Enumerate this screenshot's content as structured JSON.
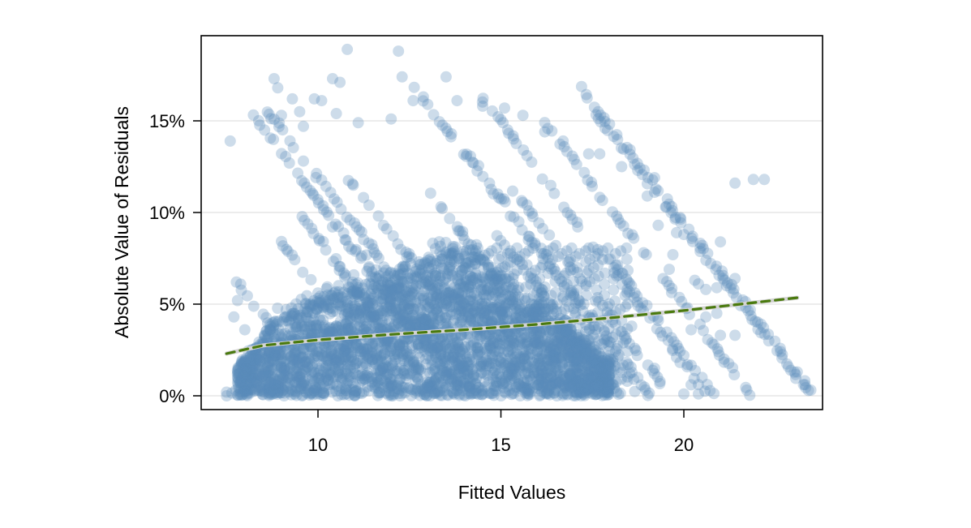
{
  "chart_data": {
    "type": "scatter",
    "title": "",
    "xlabel": "Fitted Values",
    "ylabel": "Absolute Value of Residuals",
    "xlim": [
      7.2,
      23.5
    ],
    "ylim": [
      -0.4,
      19.4
    ],
    "x_ticks": [
      10,
      15,
      20
    ],
    "x_tick_labels": [
      "10",
      "15",
      "20"
    ],
    "y_ticks": [
      0,
      5,
      10,
      15
    ],
    "y_tick_labels": [
      "0%",
      "5%",
      "10%",
      "15%"
    ],
    "y_unit": "percent",
    "grid": {
      "horizontal": true,
      "vertical": false,
      "color": "#e6e6e6"
    },
    "legend": null,
    "colors": {
      "points": "#5b8cba",
      "point_alpha": 0.3,
      "trend_line": "#4a7a0e",
      "trend_halo": "#d3d3d3",
      "frame": "#000000"
    },
    "series": [
      {
        "name": "Absolute residuals",
        "kind": "scatter",
        "description": "Dense cloud of points, concentrated at fitted values 8-18 and residuals 0-8%; hatched diagonal band structure; sparse outliers above 10% and beyond fitted 19.",
        "band_generator": {
          "falling_bands": {
            "x_start": [
              7.6,
              18.2
            ],
            "spacing": 0.45,
            "slope": -1.0,
            "y_max": 17.5
          },
          "rising_bands": {
            "x_start": [
              7.5,
              17.5
            ],
            "spacing": 0.5,
            "slope": 1.0,
            "y_max": 8.5
          }
        },
        "points": [
          [
            7.6,
            13.9
          ],
          [
            8.8,
            17.3
          ],
          [
            8.9,
            16.8
          ],
          [
            9.3,
            16.2
          ],
          [
            9.0,
            15.3
          ],
          [
            9.5,
            15.5
          ],
          [
            10.8,
            18.9
          ],
          [
            12.2,
            18.8
          ],
          [
            12.3,
            17.4
          ],
          [
            10.4,
            17.3
          ],
          [
            10.6,
            17.1
          ],
          [
            9.9,
            16.2
          ],
          [
            10.1,
            16.1
          ],
          [
            10.5,
            15.4
          ],
          [
            9.6,
            14.7
          ],
          [
            11.1,
            14.9
          ],
          [
            12.0,
            15.1
          ],
          [
            12.6,
            16.1
          ],
          [
            13.0,
            15.9
          ],
          [
            13.5,
            17.4
          ],
          [
            13.8,
            16.1
          ],
          [
            14.5,
            15.8
          ],
          [
            15.1,
            15.7
          ],
          [
            15.6,
            15.3
          ],
          [
            16.2,
            14.4
          ],
          [
            16.7,
            13.9
          ],
          [
            17.4,
            13.2
          ],
          [
            17.7,
            13.2
          ],
          [
            18.3,
            12.5
          ],
          [
            19.2,
            11.9
          ],
          [
            19.2,
            11.1
          ],
          [
            19.0,
            10.9
          ],
          [
            19.5,
            10.3
          ],
          [
            19.8,
            8.9
          ],
          [
            20.0,
            8.8
          ],
          [
            19.3,
            9.3
          ],
          [
            21.0,
            8.4
          ],
          [
            19.7,
            7.7
          ],
          [
            19.6,
            6.9
          ],
          [
            20.3,
            6.3
          ],
          [
            20.4,
            6.1
          ],
          [
            20.6,
            5.8
          ],
          [
            20.9,
            5.9
          ],
          [
            21.9,
            11.8
          ],
          [
            22.2,
            11.8
          ],
          [
            21.4,
            11.6
          ],
          [
            21.4,
            6.4
          ],
          [
            20.1,
            4.8
          ],
          [
            20.6,
            4.3
          ],
          [
            20.9,
            4.5
          ],
          [
            21.0,
            3.3
          ],
          [
            21.4,
            3.3
          ],
          [
            20.2,
            3.6
          ],
          [
            21.1,
            2.0
          ],
          [
            19.8,
            2.1
          ],
          [
            20.1,
            1.7
          ],
          [
            20.5,
            1.0
          ],
          [
            20.2,
            0.6
          ],
          [
            20.0,
            0.1
          ],
          [
            20.4,
            0.1
          ],
          [
            19.2,
            1.5
          ],
          [
            23.1,
            1.3
          ],
          [
            7.8,
            5.2
          ],
          [
            7.7,
            4.3
          ],
          [
            8.0,
            3.6
          ],
          [
            7.5,
            0.2
          ],
          [
            8.1,
            0.4
          ]
        ]
      },
      {
        "name": "Smoothed trend",
        "kind": "line",
        "style": "dashed",
        "x": [
          7.5,
          8.5,
          10,
          12,
          14,
          16,
          18,
          20,
          23.1
        ],
        "y": [
          2.3,
          2.75,
          3.05,
          3.35,
          3.6,
          3.9,
          4.25,
          4.65,
          5.35
        ]
      }
    ]
  }
}
